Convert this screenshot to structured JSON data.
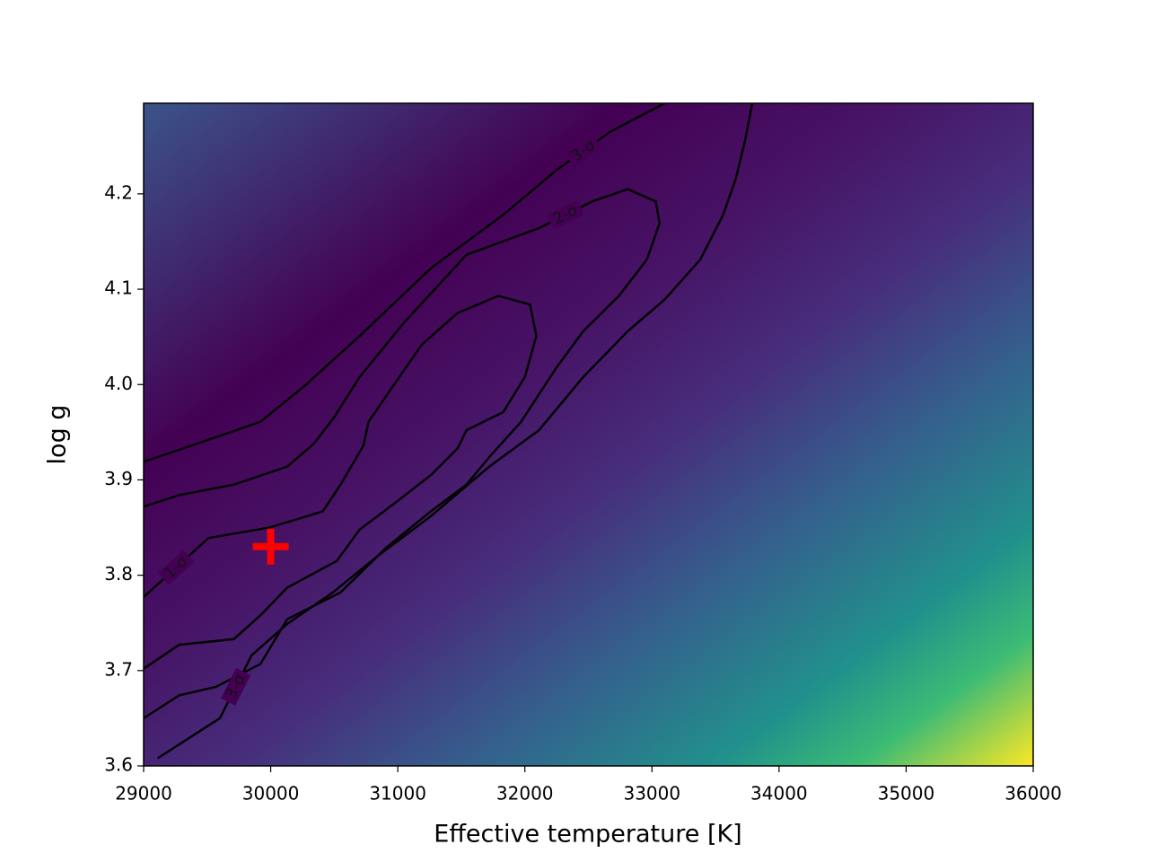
{
  "chart_data": {
    "type": "contour",
    "xlabel": "Effective temperature [K]",
    "ylabel": "log g",
    "xlim": [
      29000,
      36000
    ],
    "ylim": [
      3.6,
      4.295
    ],
    "xticks": [
      29000,
      30000,
      31000,
      32000,
      33000,
      34000,
      35000,
      36000
    ],
    "yticks": [
      3.6,
      3.7,
      3.8,
      3.9,
      {
        "value": 4,
        "label": "4.0"
      },
      4.1,
      4.2
    ],
    "best_fit": {
      "x": 30000,
      "y": 3.83,
      "color": "#ff0000"
    },
    "contours": [
      {
        "name": "1-σ",
        "color": "#000000",
        "x": [
          29000,
          29510,
          29990,
          30410,
          30550,
          30730,
          30770,
          30940,
          31190,
          31470,
          31790,
          32040,
          32090,
          32000,
          31830,
          31540,
          31470,
          31260,
          30980,
          30700,
          30520,
          30130,
          29920,
          29710,
          29490,
          29280,
          29000
        ],
        "y": [
          3.777,
          3.839,
          3.85,
          3.867,
          3.895,
          3.936,
          3.961,
          3.994,
          4.042,
          4.075,
          4.093,
          4.084,
          4.051,
          4.008,
          3.971,
          3.952,
          3.933,
          3.905,
          3.876,
          3.848,
          3.815,
          3.787,
          3.758,
          3.733,
          3.73,
          3.727,
          3.702
        ]
      },
      {
        "name": "2-σ",
        "color": "#000000",
        "x": [
          29000,
          29280,
          29710,
          30130,
          30340,
          30500,
          30700,
          31050,
          31540,
          32110,
          32530,
          32810,
          33030,
          33060,
          32960,
          32740,
          32460,
          32250,
          31970,
          31720,
          31540,
          31260,
          30910,
          30550,
          30130,
          29920,
          29570,
          29280,
          29000
        ],
        "y": [
          3.872,
          3.884,
          3.895,
          3.914,
          3.938,
          3.966,
          4.008,
          4.065,
          4.136,
          4.164,
          4.192,
          4.205,
          4.192,
          4.169,
          4.131,
          4.093,
          4.056,
          4.018,
          3.961,
          3.924,
          3.895,
          3.867,
          3.829,
          3.782,
          3.754,
          3.707,
          3.683,
          3.674,
          3.65
        ]
      },
      {
        "name": "3-σ",
        "color": "#000000",
        "x": [
          29000,
          29420,
          29920,
          30270,
          30700,
          31260,
          31830,
          32250,
          32670,
          33100,
          null,
          33790,
          33730,
          33660,
          33560,
          33380,
          33100,
          32810,
          32460,
          32110,
          31720,
          31260,
          30840,
          30490,
          30130,
          29850,
          29600,
          29110
        ],
        "y": [
          3.919,
          3.938,
          3.961,
          3.999,
          4.051,
          4.122,
          4.178,
          4.225,
          4.265,
          4.295,
          null,
          4.295,
          4.254,
          4.216,
          4.178,
          4.131,
          4.089,
          4.056,
          4.008,
          3.952,
          3.914,
          3.862,
          3.82,
          3.782,
          3.749,
          3.716,
          3.65,
          3.608
        ]
      }
    ]
  }
}
